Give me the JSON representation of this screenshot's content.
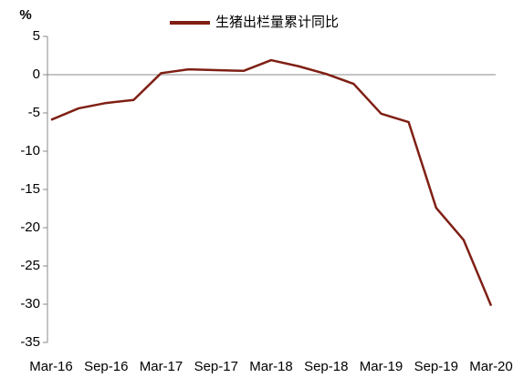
{
  "chart_data": {
    "type": "line",
    "y_label": "%",
    "categories": [
      "Mar-16",
      null,
      "Sep-16",
      null,
      "Mar-17",
      null,
      "Sep-17",
      null,
      "Mar-18",
      null,
      "Sep-18",
      null,
      "Mar-19",
      null,
      "Sep-19",
      null,
      "Mar-20"
    ],
    "series": [
      {
        "name": "生猪出栏量累计同比",
        "color": "#7f1f14",
        "values": [
          -5.9,
          -4.4,
          -3.7,
          -3.3,
          0.2,
          0.7,
          0.6,
          0.5,
          1.9,
          1.1,
          0.1,
          -1.2,
          -5.1,
          -6.2,
          -17.4,
          -21.6,
          -30.2
        ]
      }
    ],
    "ylim": [
      -35,
      5
    ],
    "yticks": [
      -35,
      -30,
      -25,
      -20,
      -15,
      -10,
      -5,
      0,
      5
    ],
    "legend": "top"
  }
}
